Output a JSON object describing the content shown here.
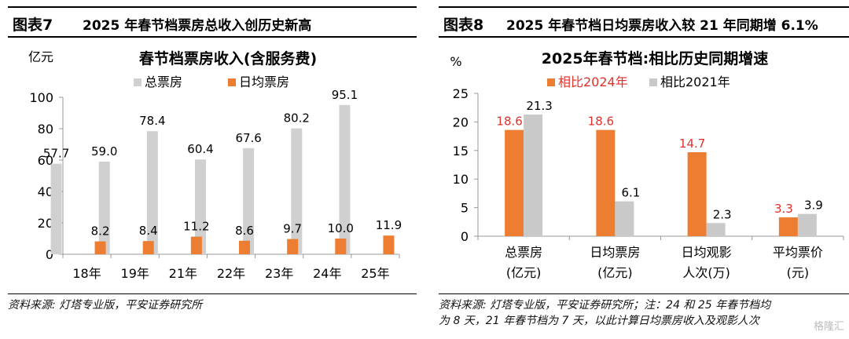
{
  "left_panel": {
    "label": "图表7",
    "title": "2025 年春节档票房总收入创历史新高",
    "source": "资料来源: 灯塔专业版，平安证券研究所"
  },
  "right_panel": {
    "label": "图表8",
    "title": "2025 年春节档日均票房收入较 21 年同期增 6.1%",
    "source_line1": "资料来源: 灯塔专业版，平安证券研究所；注：24 和 25 年春节档均",
    "source_line2": "为 8 天，21 年春节档为 7 天，以此计算日均票房收入及观影人次"
  },
  "watermark": "格隆汇",
  "chart_data": [
    {
      "type": "bar",
      "title": "春节档票房收入(含服务费)",
      "ylabel": "亿元",
      "ylim": [
        0,
        100
      ],
      "yticks": [
        0,
        20,
        40,
        60,
        80,
        100
      ],
      "categories": [
        "18年",
        "19年",
        "21年",
        "22年",
        "23年",
        "24年",
        "25年"
      ],
      "series": [
        {
          "name": "总票房",
          "color": "#d0d0d0",
          "values": [
            57.7,
            59.0,
            78.4,
            60.4,
            67.6,
            80.2,
            95.1
          ],
          "labels": [
            "57.7",
            "59.0",
            "78.4",
            "60.4",
            "67.6",
            "80.2",
            "95.1"
          ]
        },
        {
          "name": "日均票房",
          "color": "#ed7d31",
          "values": [
            8.2,
            8.4,
            11.2,
            8.6,
            9.7,
            10.0,
            11.9
          ],
          "labels": [
            "8.2",
            "8.4",
            "11.2",
            "8.6",
            "9.7",
            "10.0",
            "11.9"
          ]
        }
      ],
      "legend": "top",
      "grid": false
    },
    {
      "type": "bar",
      "title": "2025年春节档:相比历史同期增速",
      "ylabel": "%",
      "ylim": [
        0,
        25
      ],
      "yticks": [
        0,
        5,
        10,
        15,
        20,
        25
      ],
      "categories": [
        [
          "总票房",
          "(亿元)"
        ],
        [
          "日均票房",
          "(亿元)"
        ],
        [
          "日均观影",
          "人次(万)"
        ],
        [
          "平均票价",
          "(元)"
        ]
      ],
      "series": [
        {
          "name": "相比2024年",
          "color": "#ed7d31",
          "label_color": "#e0322b",
          "values": [
            18.6,
            18.6,
            14.7,
            3.3
          ],
          "labels": [
            "18.6",
            "18.6",
            "14.7",
            "3.3"
          ]
        },
        {
          "name": "相比2021年",
          "color": "#c9c9c9",
          "label_color": "#000000",
          "values": [
            21.3,
            6.1,
            2.3,
            3.9
          ],
          "labels": [
            "21.3",
            "6.1",
            "2.3",
            "3.9"
          ]
        }
      ],
      "legend": "top",
      "grid": false
    }
  ]
}
